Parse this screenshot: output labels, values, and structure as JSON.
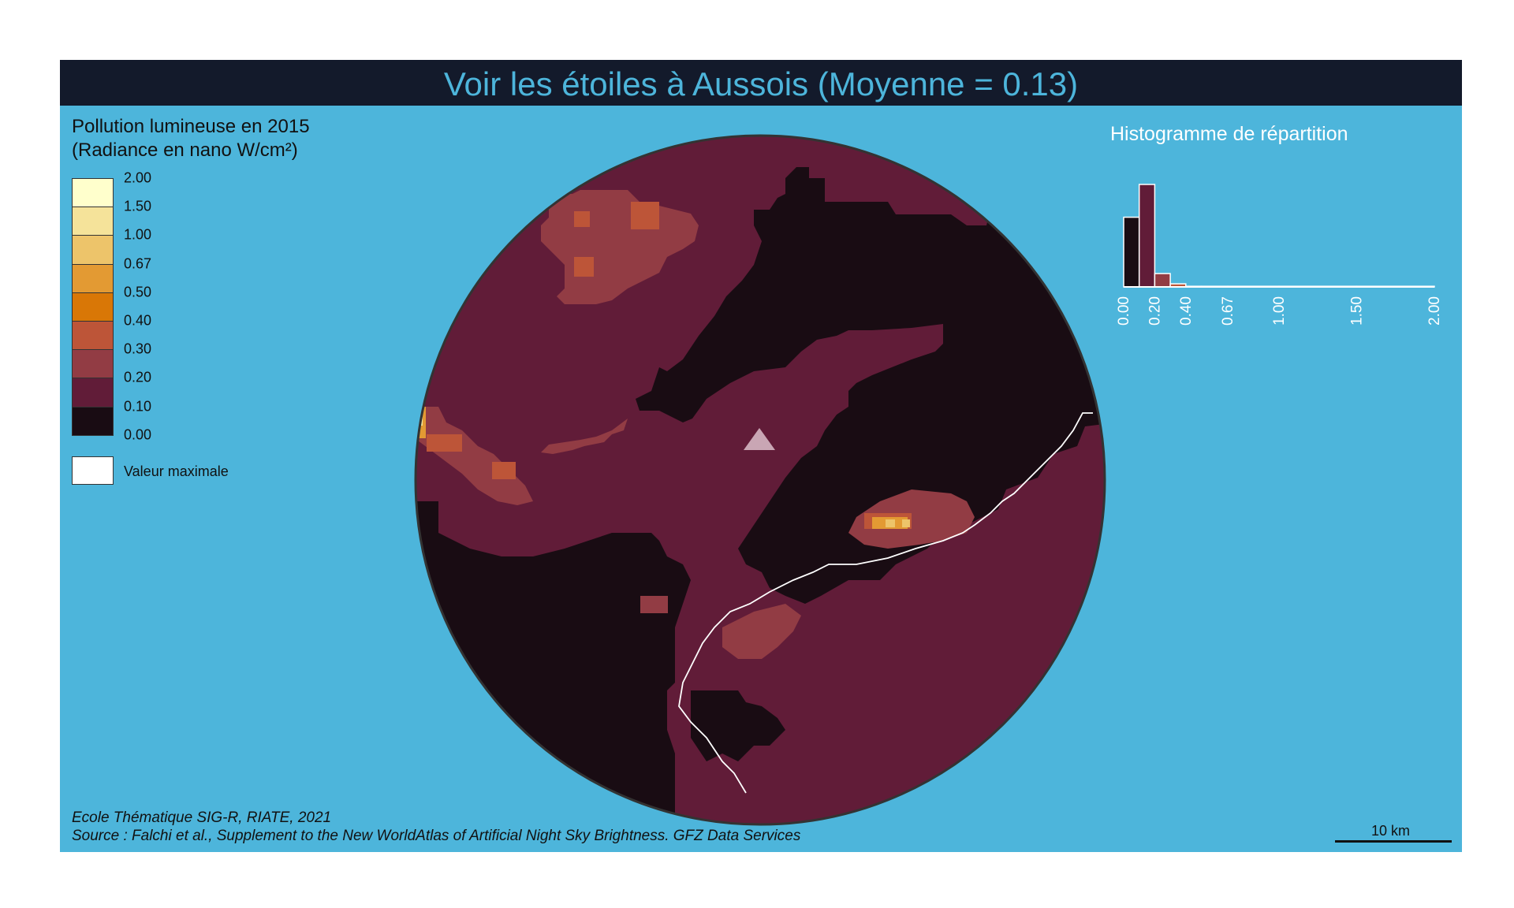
{
  "title": "Voir les étoiles à Aussois (Moyenne = 0.13)",
  "legend": {
    "title_line1": "Pollution lumineuse en 2015",
    "title_line2": "(Radiance en nano W/cm²)",
    "breaks": [
      "2.00",
      "1.50",
      "1.00",
      "0.67",
      "0.50",
      "0.40",
      "0.30",
      "0.20",
      "0.10",
      "0.00"
    ],
    "colors": [
      "#ffffcc",
      "#f5e39a",
      "#edc46a",
      "#e39a33",
      "#d97706",
      "#bd5538",
      "#923c44",
      "#611c38",
      "#190c13"
    ],
    "max_label": "Valeur maximale",
    "max_color": "#ffffff"
  },
  "map": {
    "background": "#4db5db",
    "site_marker": "triangle-icon",
    "site_marker_color": "#c9a6b4",
    "border_color": "#ffffff"
  },
  "histogram": {
    "title": "Histogramme de répartition",
    "axis_ticks": [
      "0.00",
      "0.20",
      "0.40",
      "0.67",
      "1.00",
      "1.50",
      "2.00"
    ],
    "chart_data": {
      "type": "bar",
      "bins": [
        [
          0.0,
          0.1
        ],
        [
          0.1,
          0.2
        ],
        [
          0.2,
          0.3
        ],
        [
          0.3,
          0.4
        ],
        [
          0.4,
          0.5
        ],
        [
          0.5,
          0.67
        ],
        [
          0.67,
          1.0
        ],
        [
          1.0,
          1.5
        ],
        [
          1.5,
          2.0
        ]
      ],
      "values": [
        0.68,
        1.0,
        0.13,
        0.03,
        0.005,
        0.003,
        0.002,
        0.001,
        0.001
      ],
      "colors": [
        "#190c13",
        "#611c38",
        "#923c44",
        "#bd5538",
        "#d97706",
        "#e39a33",
        "#edc46a",
        "#f5e39a",
        "#ffffcc"
      ]
    }
  },
  "credits": {
    "line1": "Ecole Thématique SIG-R, RIATE, 2021",
    "line2": "Source : Falchi et al., Supplement to the New WorldAtlas of Artificial Night Sky Brightness. GFZ Data Services"
  },
  "scale_bar": {
    "label": "10 km"
  }
}
